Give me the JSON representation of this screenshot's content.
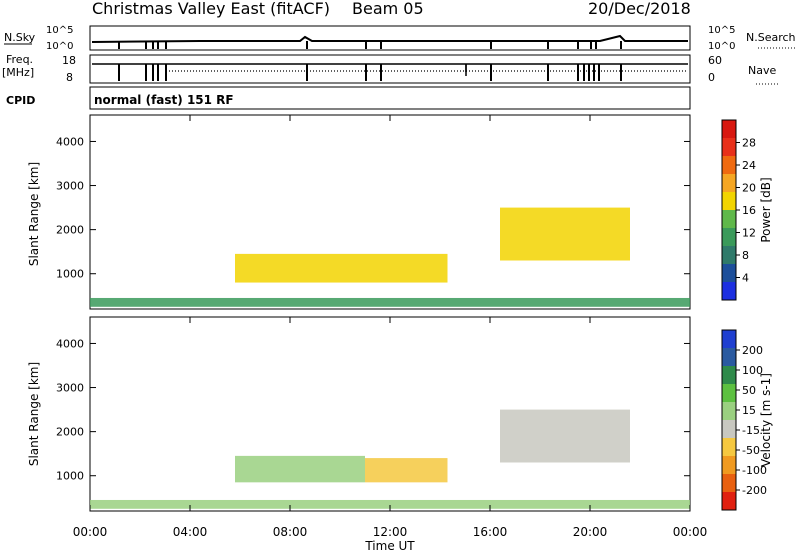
{
  "header": {
    "title": "Christmas Valley East (fitACF)",
    "beam": "Beam 05",
    "date": "20/Dec/2018"
  },
  "strip_labels": {
    "nsky": "N.Sky",
    "nsky_scale_top": "10^5",
    "nsky_scale_bottom": "10^0",
    "nsearch": "N.Search",
    "nsearch_scale_top": "10^5",
    "nsearch_scale_bottom": "10^0",
    "freq": "Freq.",
    "freq_unit": "[MHz]",
    "freq_top": "18",
    "freq_bottom": "8",
    "nave": "Nave",
    "nave_top": "60",
    "nave_bottom": "0",
    "cpid": "CPID",
    "cpid_value": "normal (fast) 151 RF"
  },
  "colors": {
    "power_scale": [
      "#1c2fe0",
      "#1d4f9a",
      "#2f7a6a",
      "#3a9a5a",
      "#5fb84a",
      "#f2d400",
      "#f5a623",
      "#ef6a10",
      "#e8301a",
      "#d81810"
    ],
    "velocity_scale": [
      "#1f3fd0",
      "#2a5aa0",
      "#2e8a4a",
      "#5cc040",
      "#9ad080",
      "#c8c8c0",
      "#f5c840",
      "#f09a20",
      "#e86010",
      "#e02010"
    ]
  },
  "chart_data": [
    {
      "type": "heatmap",
      "name": "power",
      "ylabel": "Slant Range [km]",
      "yticks": [
        "1000",
        "2000",
        "3000",
        "4000"
      ],
      "ylim": [
        200,
        4600
      ],
      "xlim": [
        "00:00",
        "24:00"
      ],
      "colorbar": {
        "label": "Power [dB]",
        "ticks": [
          "4",
          "8",
          "12",
          "16",
          "20",
          "24",
          "28"
        ],
        "range": [
          0,
          32
        ]
      },
      "regions": [
        {
          "t_start": 5.8,
          "t_end": 14.3,
          "range_start": 800,
          "range_end": 1450,
          "value": 18
        },
        {
          "t_start": 16.4,
          "t_end": 21.6,
          "range_start": 1300,
          "range_end": 2500,
          "value": 17
        },
        {
          "t_start": 0.0,
          "t_end": 24.0,
          "range_start": 250,
          "range_end": 450,
          "value": 10
        }
      ]
    },
    {
      "type": "heatmap",
      "name": "velocity",
      "ylabel": "Slant Range [km]",
      "yticks": [
        "1000",
        "2000",
        "3000",
        "4000"
      ],
      "ylim": [
        200,
        4600
      ],
      "xlabel": "Time UT",
      "xticks": [
        "00:00",
        "04:00",
        "08:00",
        "12:00",
        "16:00",
        "20:00",
        "00:00"
      ],
      "xlim": [
        "00:00",
        "24:00"
      ],
      "colorbar": {
        "label": "Velocity [m s-1]",
        "ticks": [
          "200",
          "100",
          "50",
          "15",
          "-15",
          "-50",
          "-100",
          "-200"
        ],
        "range": [
          -250,
          250
        ]
      },
      "regions": [
        {
          "t_start": 5.8,
          "t_end": 11.0,
          "range_start": 850,
          "range_end": 1450,
          "value": 40
        },
        {
          "t_start": 11.0,
          "t_end": 14.3,
          "range_start": 850,
          "range_end": 1400,
          "value": -60
        },
        {
          "t_start": 16.4,
          "t_end": 21.6,
          "range_start": 1300,
          "range_end": 2500,
          "value": 0
        },
        {
          "t_start": 0.0,
          "t_end": 24.0,
          "range_start": 250,
          "range_end": 450,
          "value": 20
        }
      ]
    }
  ]
}
